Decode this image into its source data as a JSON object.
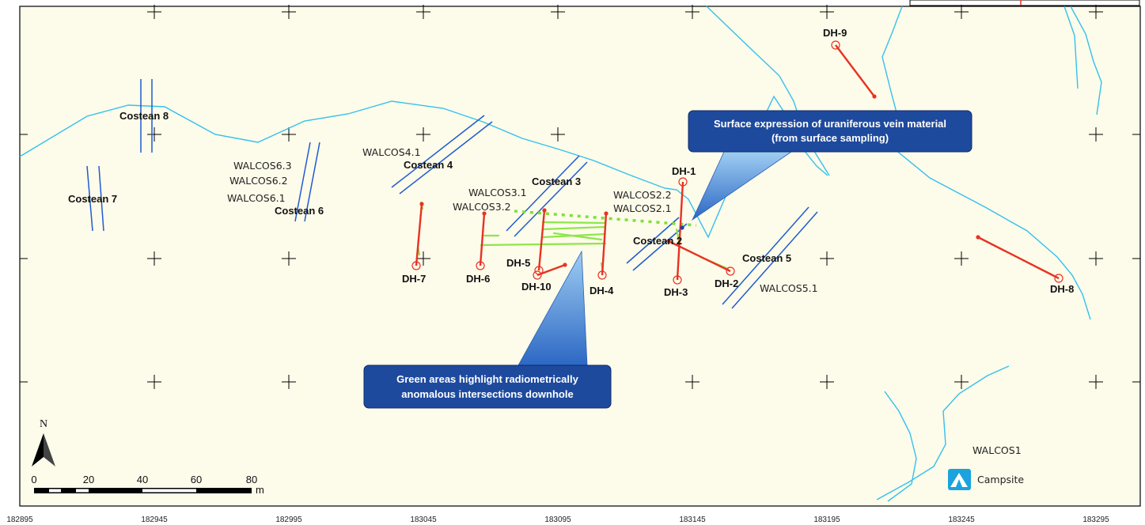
{
  "map": {
    "grid_x_labels": [
      "182895",
      "182945",
      "182995",
      "183045",
      "183095",
      "183145",
      "183195",
      "183245",
      "183295"
    ]
  },
  "costeans": [
    {
      "label": "Costean 8"
    },
    {
      "label": "Costean 7"
    },
    {
      "label": "Costean 6"
    },
    {
      "label": "Costean 4"
    },
    {
      "label": "Costean 3"
    },
    {
      "label": "Costean 2"
    },
    {
      "label": "Costean 5"
    }
  ],
  "samples": [
    {
      "label": "WALCOS6.3"
    },
    {
      "label": "WALCOS6.2"
    },
    {
      "label": "WALCOS6.1"
    },
    {
      "label": "WALCOS4.1"
    },
    {
      "label": "WALCOS3.1"
    },
    {
      "label": "WALCOS3.2"
    },
    {
      "label": "WALCOS2.2"
    },
    {
      "label": "WALCOS2.1"
    },
    {
      "label": "WALCOS5.1"
    },
    {
      "label": "WALCOS1"
    }
  ],
  "drillholes": [
    {
      "label": "DH-1"
    },
    {
      "label": "DH-2"
    },
    {
      "label": "DH-3"
    },
    {
      "label": "DH-4"
    },
    {
      "label": "DH-5"
    },
    {
      "label": "DH-6"
    },
    {
      "label": "DH-7"
    },
    {
      "label": "DH-8"
    },
    {
      "label": "DH-9"
    },
    {
      "label": "DH-10"
    }
  ],
  "callouts": {
    "surface_line1": "Surface expression of uraniferous vein material",
    "surface_line2": "(from surface sampling)",
    "green_line1": "Green areas highlight radiometrically",
    "green_line2": "anomalous intersections downhole"
  },
  "north_arrow": {
    "label": "N"
  },
  "scale_bar": {
    "ticks": [
      "0",
      "20",
      "40",
      "60",
      "80"
    ],
    "unit": "m"
  },
  "legend": {
    "campsite": "Campsite",
    "campsite_icon": "tent-icon"
  },
  "colors": {
    "creek": "#33c1ee",
    "costean": "#1f5bd1",
    "drillhole": "#e83222",
    "anomaly": "#8ee64a",
    "callout": "#1e4a9e",
    "background": "#fdfbea"
  }
}
